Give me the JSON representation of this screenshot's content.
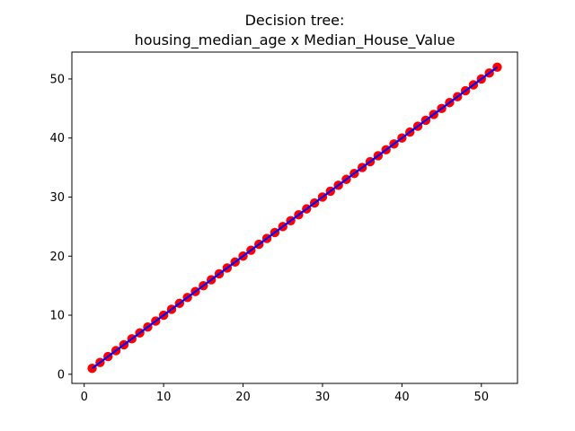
{
  "chart_data": {
    "type": "scatter",
    "title_line1": "Decision tree:",
    "title_line2": "housing_median_age x Median_House_Value",
    "xlabel": "",
    "ylabel": "",
    "xlim": [
      -1.55,
      54.55
    ],
    "ylim": [
      -1.55,
      54.55
    ],
    "xticks": [
      0,
      10,
      20,
      30,
      40,
      50
    ],
    "yticks": [
      0,
      10,
      20,
      30,
      40,
      50
    ],
    "grid": false,
    "series": [
      {
        "kind": "scatter",
        "color": "#ff0000",
        "x": [
          1,
          2,
          3,
          4,
          5,
          6,
          7,
          8,
          9,
          10,
          11,
          12,
          13,
          14,
          15,
          16,
          17,
          18,
          19,
          20,
          21,
          22,
          23,
          24,
          25,
          26,
          27,
          28,
          29,
          30,
          31,
          32,
          33,
          34,
          35,
          36,
          37,
          38,
          39,
          40,
          41,
          42,
          43,
          44,
          45,
          46,
          47,
          48,
          49,
          50,
          51,
          52
        ],
        "y": [
          1,
          2,
          3,
          4,
          5,
          6,
          7,
          8,
          9,
          10,
          11,
          12,
          13,
          14,
          15,
          16,
          17,
          18,
          19,
          20,
          21,
          22,
          23,
          24,
          25,
          26,
          27,
          28,
          29,
          30,
          31,
          32,
          33,
          34,
          35,
          36,
          37,
          38,
          39,
          40,
          41,
          42,
          43,
          44,
          45,
          46,
          47,
          48,
          49,
          50,
          51,
          52
        ]
      },
      {
        "kind": "line",
        "color": "#0000ff",
        "x": [
          1,
          2,
          3,
          4,
          5,
          6,
          7,
          8,
          9,
          10,
          11,
          12,
          13,
          14,
          15,
          16,
          17,
          18,
          19,
          20,
          21,
          22,
          23,
          24,
          25,
          26,
          27,
          28,
          29,
          30,
          31,
          32,
          33,
          34,
          35,
          36,
          37,
          38,
          39,
          40,
          41,
          42,
          43,
          44,
          45,
          46,
          47,
          48,
          49,
          50,
          51,
          52
        ],
        "y": [
          1,
          2,
          3,
          4,
          5,
          6,
          7,
          8,
          9,
          10,
          11,
          12,
          13,
          14,
          15,
          16,
          17,
          18,
          19,
          20,
          21,
          22,
          23,
          24,
          25,
          26,
          27,
          28,
          29,
          30,
          31,
          32,
          33,
          34,
          35,
          36,
          37,
          38,
          39,
          40,
          41,
          42,
          43,
          44,
          45,
          46,
          47,
          48,
          49,
          50,
          51,
          52
        ]
      }
    ]
  }
}
